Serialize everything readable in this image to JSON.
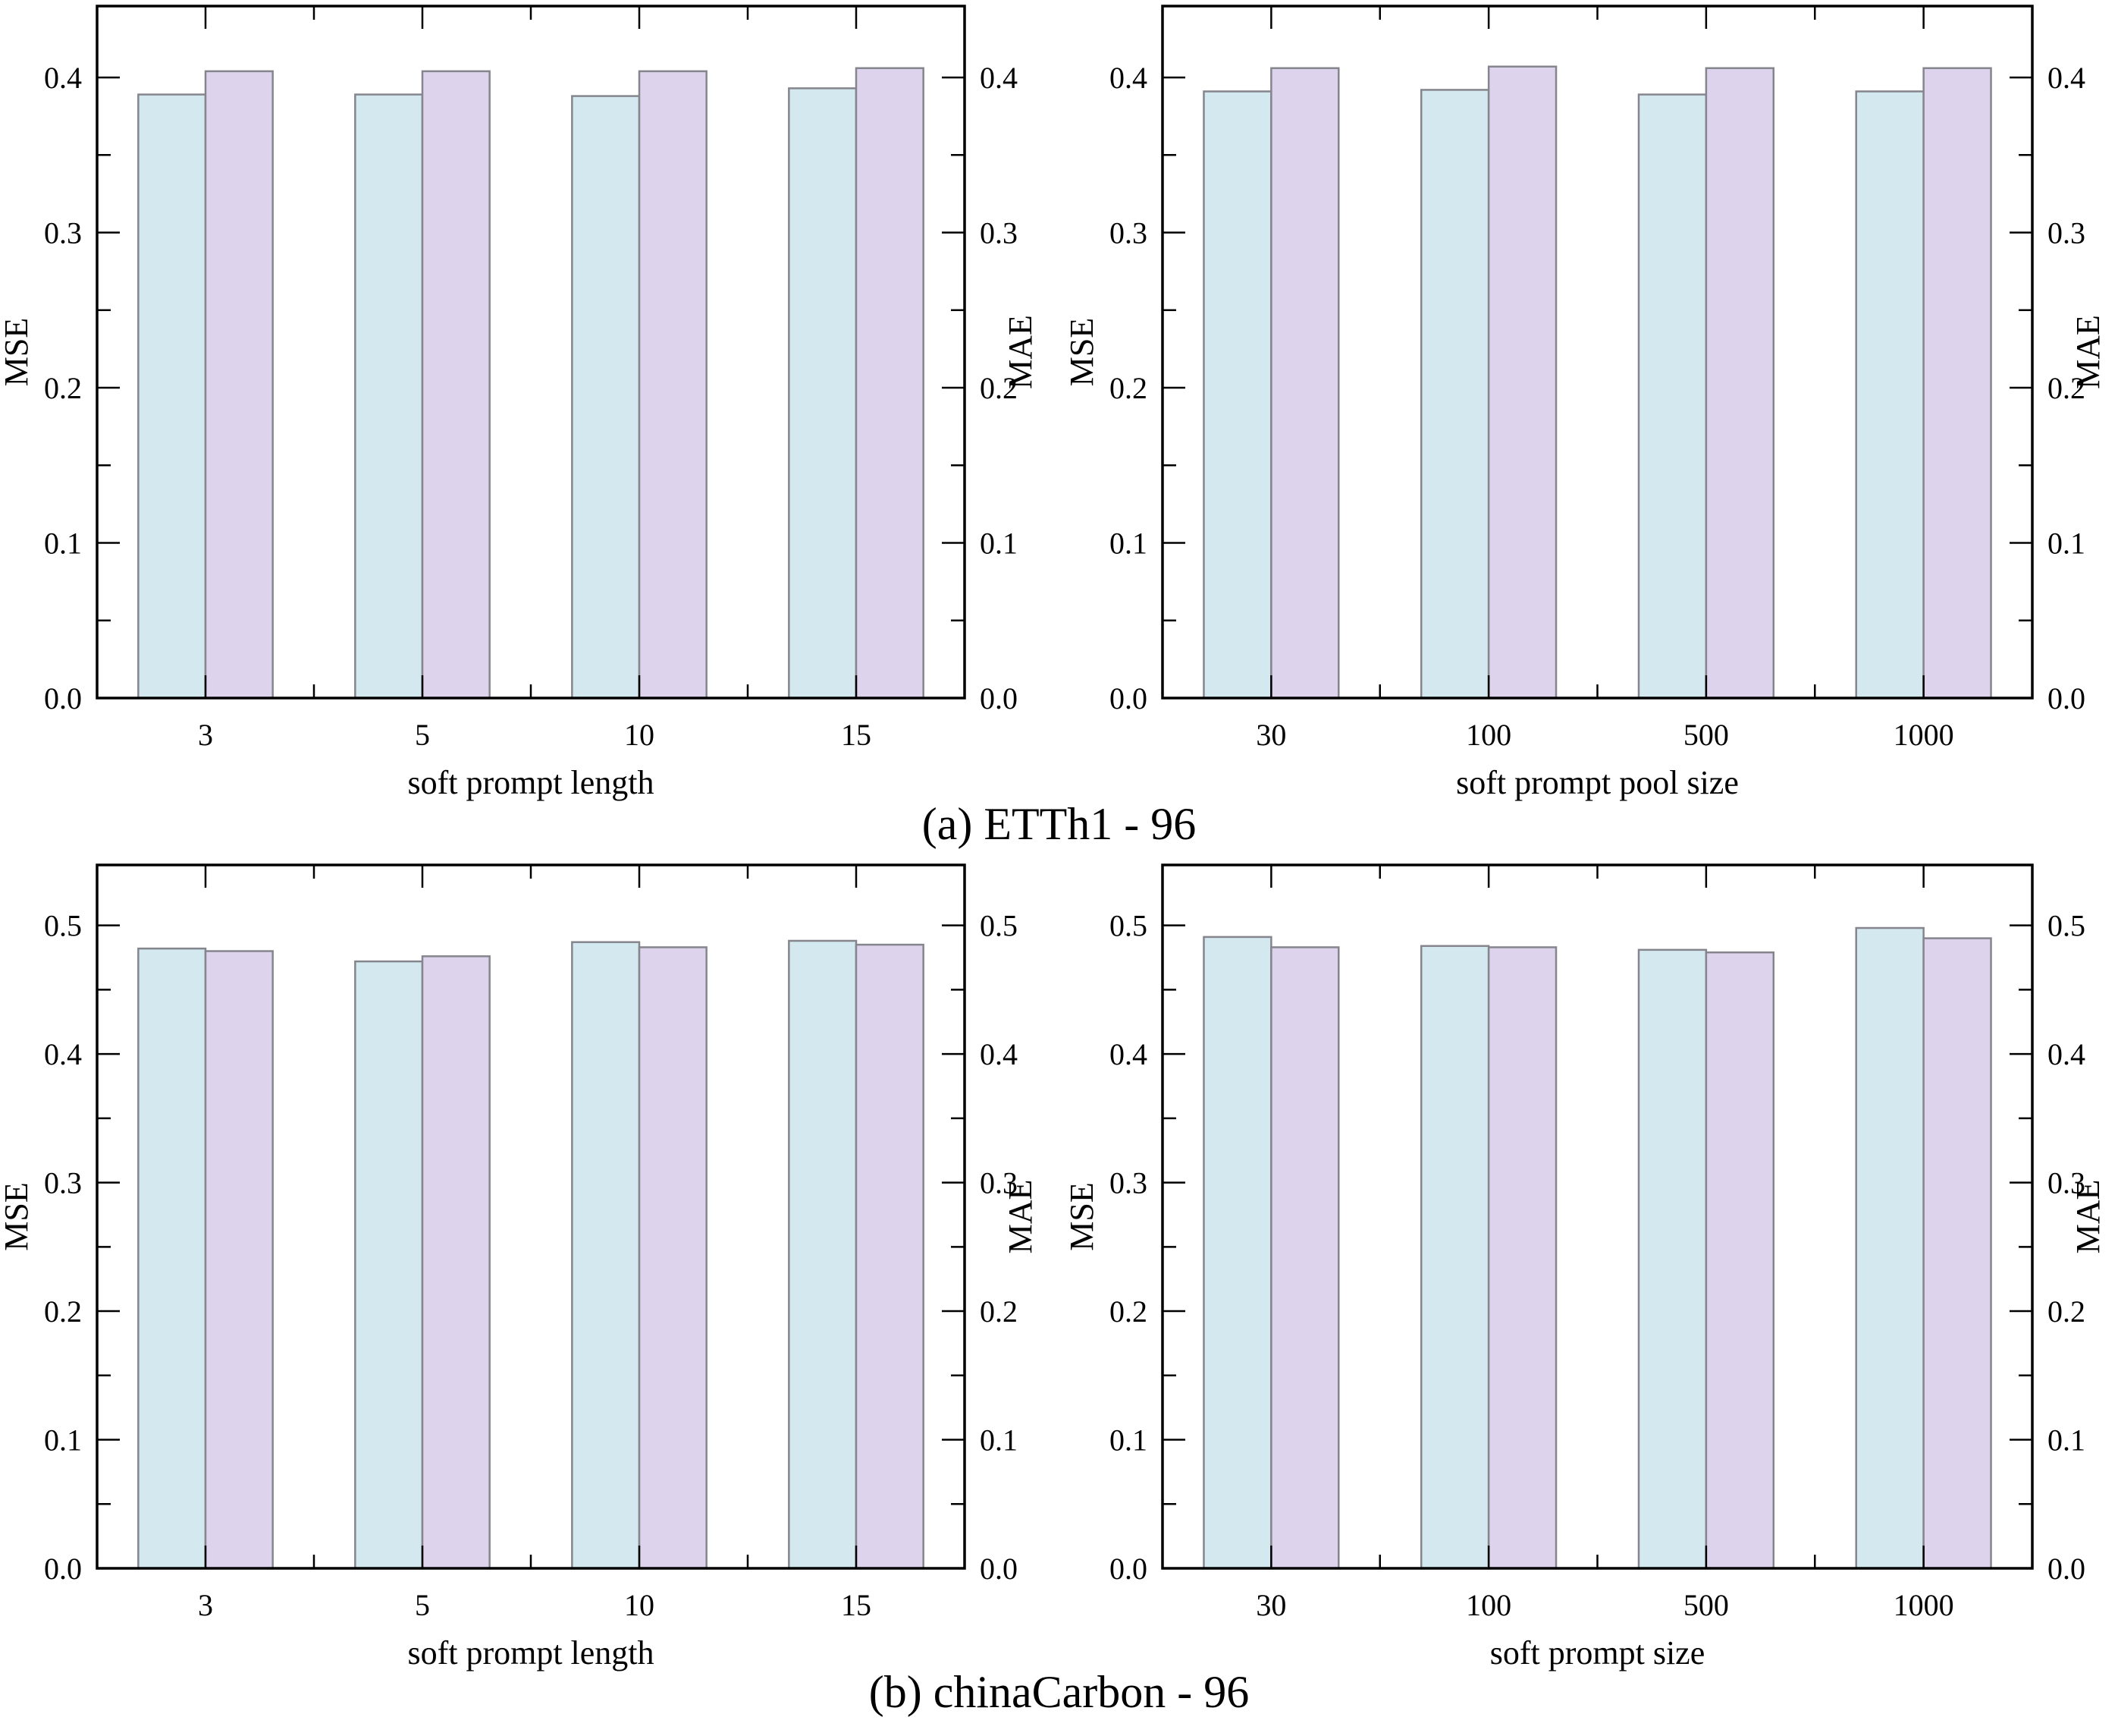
{
  "captions": {
    "a": "(a) ETTh1 - 96",
    "b": "(b) chinaCarbon - 96"
  },
  "colors": {
    "mse_fill": "#d4e9ef",
    "mae_fill": "#ddd3ec",
    "bar_border": "#85858d",
    "axis": "#000000",
    "background": "#ffffff"
  },
  "chart_data": [
    {
      "type": "bar",
      "position": "top-left",
      "xlabel": "soft prompt length",
      "ylabel_left": "MSE",
      "ylabel_right": "MAE",
      "categories": [
        "3",
        "5",
        "10",
        "15"
      ],
      "series": [
        {
          "name": "MSE",
          "axis": "left",
          "values": [
            0.389,
            0.389,
            0.388,
            0.393
          ]
        },
        {
          "name": "MAE",
          "axis": "right",
          "values": [
            0.404,
            0.404,
            0.404,
            0.406
          ]
        }
      ],
      "ylim": [
        0,
        0.446
      ],
      "yticks": [
        0.0,
        0.1,
        0.2,
        0.3,
        0.4
      ],
      "minor_tick_step": 0.05,
      "grid": false,
      "legend": false
    },
    {
      "type": "bar",
      "position": "top-right",
      "xlabel": "soft prompt pool size",
      "ylabel_left": "MSE",
      "ylabel_right": "MAE",
      "categories": [
        "30",
        "100",
        "500",
        "1000"
      ],
      "series": [
        {
          "name": "MSE",
          "axis": "left",
          "values": [
            0.391,
            0.392,
            0.389,
            0.391
          ]
        },
        {
          "name": "MAE",
          "axis": "right",
          "values": [
            0.406,
            0.407,
            0.406,
            0.406
          ]
        }
      ],
      "ylim": [
        0,
        0.446
      ],
      "yticks": [
        0.0,
        0.1,
        0.2,
        0.3,
        0.4
      ],
      "minor_tick_step": 0.05,
      "grid": false,
      "legend": false
    },
    {
      "type": "bar",
      "position": "bottom-left",
      "xlabel": "soft prompt length",
      "ylabel_left": "MSE",
      "ylabel_right": "MAE",
      "categories": [
        "3",
        "5",
        "10",
        "15"
      ],
      "series": [
        {
          "name": "MSE",
          "axis": "left",
          "values": [
            0.482,
            0.472,
            0.487,
            0.488
          ]
        },
        {
          "name": "MAE",
          "axis": "right",
          "values": [
            0.48,
            0.476,
            0.483,
            0.485
          ]
        }
      ],
      "ylim": [
        0,
        0.547
      ],
      "yticks": [
        0.0,
        0.1,
        0.2,
        0.3,
        0.4,
        0.5
      ],
      "minor_tick_step": 0.05,
      "grid": false,
      "legend": false
    },
    {
      "type": "bar",
      "position": "bottom-right",
      "xlabel": "soft prompt size",
      "ylabel_left": "MSE",
      "ylabel_right": "MAE",
      "categories": [
        "30",
        "100",
        "500",
        "1000"
      ],
      "series": [
        {
          "name": "MSE",
          "axis": "left",
          "values": [
            0.491,
            0.484,
            0.481,
            0.498
          ]
        },
        {
          "name": "MAE",
          "axis": "right",
          "values": [
            0.483,
            0.483,
            0.479,
            0.49
          ]
        }
      ],
      "ylim": [
        0,
        0.547
      ],
      "yticks": [
        0.0,
        0.1,
        0.2,
        0.3,
        0.4,
        0.5
      ],
      "minor_tick_step": 0.05,
      "grid": false,
      "legend": false
    }
  ]
}
